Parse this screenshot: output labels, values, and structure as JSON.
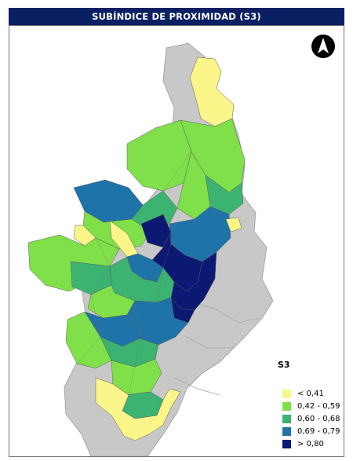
{
  "title": "SUBÍNDICE DE PROXIMIDAD (S3)",
  "north_arrow": {
    "icon": "north-arrow-icon"
  },
  "legend": {
    "title": "S3",
    "items": [
      {
        "label": "< 0,41",
        "color": "#fbf58a"
      },
      {
        "label": "0,42 - 0,59",
        "color": "#7fe04a"
      },
      {
        "label": "0,60 - 0,68",
        "color": "#3cb371"
      },
      {
        "label": "0,69 - 0,79",
        "color": "#1e73a8"
      },
      {
        "label": "> 0,80",
        "color": "#0c1973"
      }
    ]
  },
  "colors": {
    "title_bar": "#0b1f63",
    "background_region": "#c8c8c8",
    "boundary_lines": "#8a8a8a"
  }
}
